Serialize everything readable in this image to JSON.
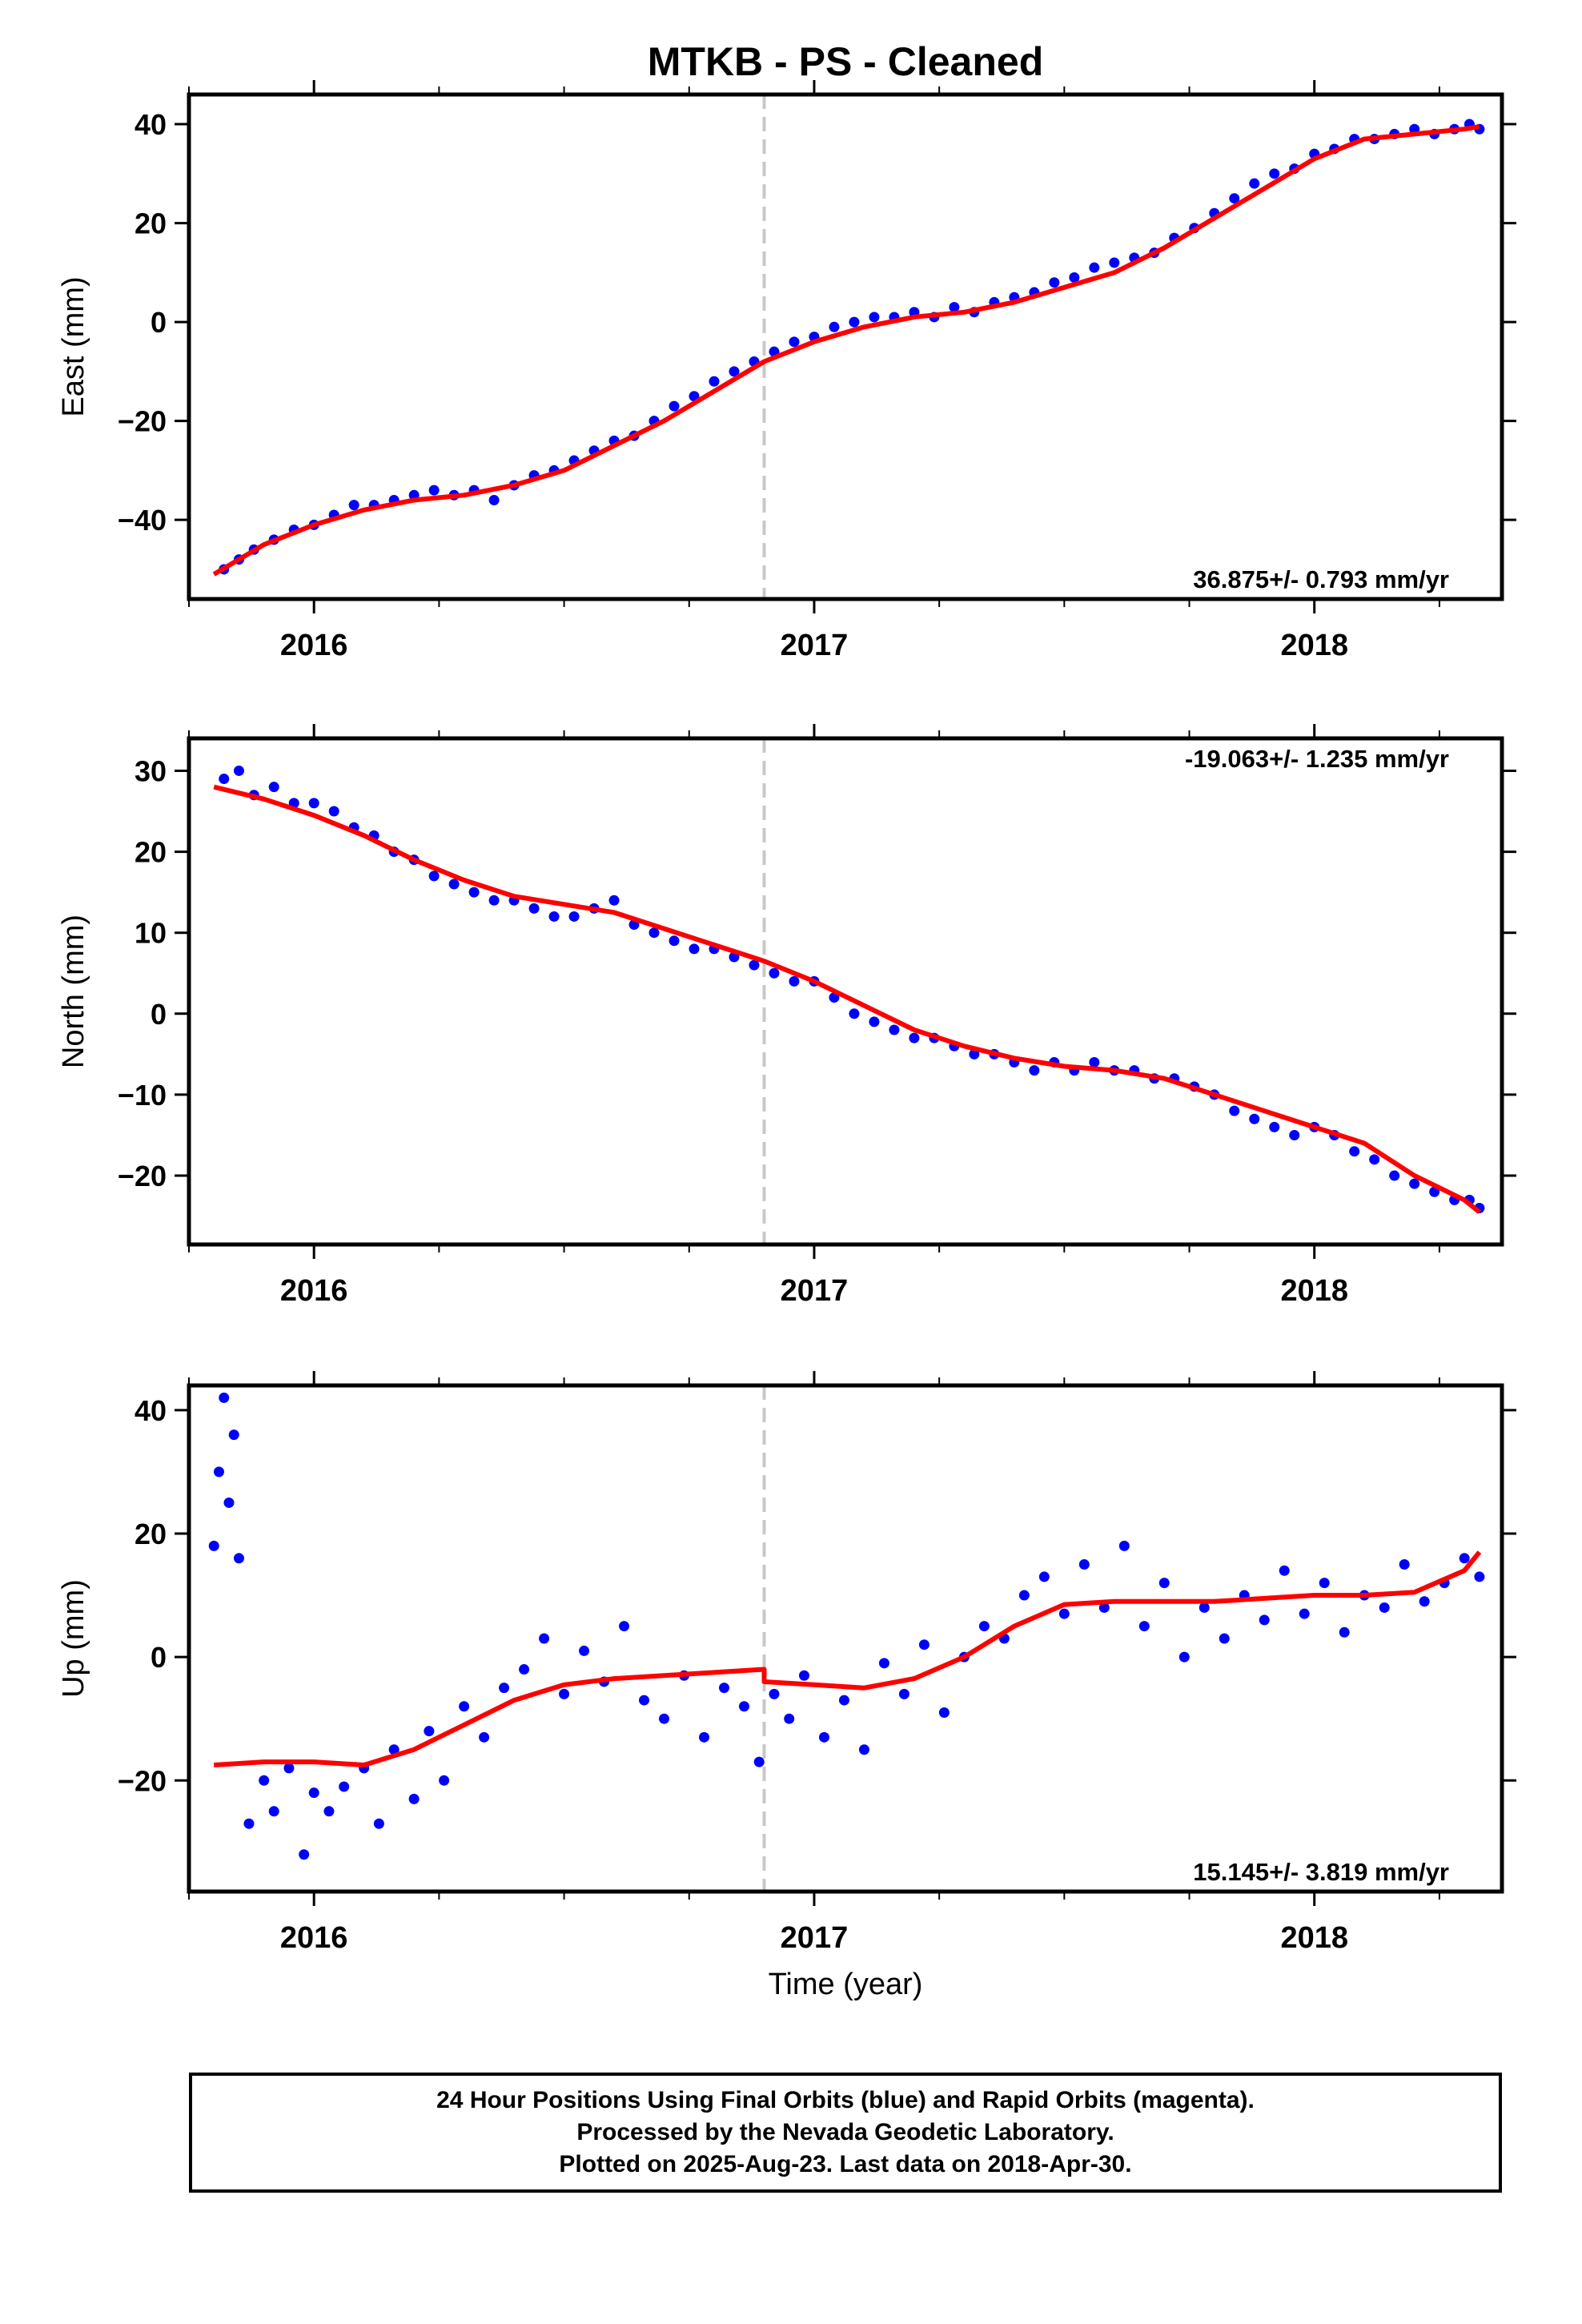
{
  "figure": {
    "title": "MTKB  - PS - Cleaned",
    "xlabel": "Time (year)"
  },
  "footer": {
    "lines": [
      "24 Hour Positions Using Final Orbits (blue) and Rapid Orbits (magenta).",
      "Processed by the Nevada Geodetic Laboratory.",
      "Plotted on 2025-Aug-23. Last data on 2018-Apr-30."
    ]
  },
  "colors": {
    "data_points": "#0000ff",
    "fit_line": "#ff0000",
    "event_line": "#c8c8c8",
    "frame": "#000000"
  },
  "chart_data": [
    {
      "type": "scatter",
      "title": "MTKB  - PS - Cleaned",
      "ylabel": "East (mm)",
      "xlim": [
        2015.75,
        2018.375
      ],
      "ylim": [
        -56,
        46
      ],
      "xticks": [
        2016,
        2017,
        2018
      ],
      "xtick_labels": [
        "2016",
        "2017",
        "2018"
      ],
      "yticks": [
        -40,
        -20,
        0,
        20,
        40
      ],
      "ytick_labels": [
        "−40",
        "−20",
        "0",
        "20",
        "40"
      ],
      "event_line_x": 2016.9,
      "annotation": "36.875+/- 0.793 mm/yr",
      "annotation_position": "bottom-right",
      "series": [
        {
          "kind": "fit_line",
          "x": [
            2015.8,
            2015.9,
            2016.0,
            2016.1,
            2016.2,
            2016.3,
            2016.4,
            2016.5,
            2016.6,
            2016.7,
            2016.8,
            2016.9,
            2017.0,
            2017.1,
            2017.2,
            2017.3,
            2017.4,
            2017.5,
            2017.6,
            2017.7,
            2017.8,
            2017.9,
            2018.0,
            2018.1,
            2018.2,
            2018.3,
            2018.33
          ],
          "y": [
            -51,
            -45,
            -41,
            -38,
            -36,
            -35,
            -33,
            -30,
            -25,
            -20,
            -14,
            -8,
            -4,
            -1,
            1,
            2,
            4,
            7,
            10,
            15,
            21,
            27,
            33,
            37,
            38,
            39,
            39.5
          ]
        },
        {
          "kind": "points",
          "x": [
            2015.82,
            2015.85,
            2015.88,
            2015.92,
            2015.96,
            2016.0,
            2016.04,
            2016.08,
            2016.12,
            2016.16,
            2016.2,
            2016.24,
            2016.28,
            2016.32,
            2016.36,
            2016.4,
            2016.44,
            2016.48,
            2016.52,
            2016.56,
            2016.6,
            2016.64,
            2016.68,
            2016.72,
            2016.76,
            2016.8,
            2016.84,
            2016.88,
            2016.92,
            2016.96,
            2017.0,
            2017.04,
            2017.08,
            2017.12,
            2017.16,
            2017.2,
            2017.24,
            2017.28,
            2017.32,
            2017.36,
            2017.4,
            2017.44,
            2017.48,
            2017.52,
            2017.56,
            2017.6,
            2017.64,
            2017.68,
            2017.72,
            2017.76,
            2017.8,
            2017.84,
            2017.88,
            2017.92,
            2017.96,
            2018.0,
            2018.04,
            2018.08,
            2018.12,
            2018.16,
            2018.2,
            2018.24,
            2018.28,
            2018.31,
            2018.33
          ],
          "y": [
            -50,
            -48,
            -46,
            -44,
            -42,
            -41,
            -39,
            -37,
            -37,
            -36,
            -35,
            -34,
            -35,
            -34,
            -36,
            -33,
            -31,
            -30,
            -28,
            -26,
            -24,
            -23,
            -20,
            -17,
            -15,
            -12,
            -10,
            -8,
            -6,
            -4,
            -3,
            -1,
            0,
            1,
            1,
            2,
            1,
            3,
            2,
            4,
            5,
            6,
            8,
            9,
            11,
            12,
            13,
            14,
            17,
            19,
            22,
            25,
            28,
            30,
            31,
            34,
            35,
            37,
            37,
            38,
            39,
            38,
            39,
            40,
            39
          ]
        }
      ]
    },
    {
      "type": "scatter",
      "ylabel": "North (mm)",
      "xlim": [
        2015.75,
        2018.375
      ],
      "ylim": [
        -28.5,
        34
      ],
      "xticks": [
        2016,
        2017,
        2018
      ],
      "xtick_labels": [
        "2016",
        "2017",
        "2018"
      ],
      "yticks": [
        -20,
        -10,
        0,
        10,
        20,
        30
      ],
      "ytick_labels": [
        "−20",
        "−10",
        "0",
        "10",
        "20",
        "30"
      ],
      "event_line_x": 2016.9,
      "annotation": "-19.063+/- 1.235 mm/yr",
      "annotation_position": "top-right",
      "series": [
        {
          "kind": "fit_line",
          "x": [
            2015.8,
            2015.9,
            2016.0,
            2016.1,
            2016.2,
            2016.3,
            2016.4,
            2016.5,
            2016.6,
            2016.7,
            2016.8,
            2016.9,
            2017.0,
            2017.1,
            2017.2,
            2017.3,
            2017.4,
            2017.5,
            2017.6,
            2017.7,
            2017.8,
            2017.9,
            2018.0,
            2018.1,
            2018.2,
            2018.3,
            2018.33
          ],
          "y": [
            28,
            26.5,
            24.5,
            22,
            19,
            16.5,
            14.5,
            13.5,
            12.5,
            10.5,
            8.5,
            6.5,
            4,
            1,
            -2,
            -4,
            -5.5,
            -6.5,
            -7,
            -8,
            -10,
            -12,
            -14,
            -16,
            -20,
            -23,
            -24.5
          ]
        },
        {
          "kind": "points",
          "x": [
            2015.82,
            2015.85,
            2015.88,
            2015.92,
            2015.96,
            2016.0,
            2016.04,
            2016.08,
            2016.12,
            2016.16,
            2016.2,
            2016.24,
            2016.28,
            2016.32,
            2016.36,
            2016.4,
            2016.44,
            2016.48,
            2016.52,
            2016.56,
            2016.6,
            2016.64,
            2016.68,
            2016.72,
            2016.76,
            2016.8,
            2016.84,
            2016.88,
            2016.92,
            2016.96,
            2017.0,
            2017.04,
            2017.08,
            2017.12,
            2017.16,
            2017.2,
            2017.24,
            2017.28,
            2017.32,
            2017.36,
            2017.4,
            2017.44,
            2017.48,
            2017.52,
            2017.56,
            2017.6,
            2017.64,
            2017.68,
            2017.72,
            2017.76,
            2017.8,
            2017.84,
            2017.88,
            2017.92,
            2017.96,
            2018.0,
            2018.04,
            2018.08,
            2018.12,
            2018.16,
            2018.2,
            2018.24,
            2018.28,
            2018.31,
            2018.33
          ],
          "y": [
            29,
            30,
            27,
            28,
            26,
            26,
            25,
            23,
            22,
            20,
            19,
            17,
            16,
            15,
            14,
            14,
            13,
            12,
            12,
            13,
            14,
            11,
            10,
            9,
            8,
            8,
            7,
            6,
            5,
            4,
            4,
            2,
            0,
            -1,
            -2,
            -3,
            -3,
            -4,
            -5,
            -5,
            -6,
            -7,
            -6,
            -7,
            -6,
            -7,
            -7,
            -8,
            -8,
            -9,
            -10,
            -12,
            -13,
            -14,
            -15,
            -14,
            -15,
            -17,
            -18,
            -20,
            -21,
            -22,
            -23,
            -23,
            -24
          ]
        }
      ]
    },
    {
      "type": "scatter",
      "ylabel": "Up (mm)",
      "xlabel": "Time (year)",
      "xlim": [
        2015.75,
        2018.375
      ],
      "ylim": [
        -38,
        44
      ],
      "xticks": [
        2016,
        2017,
        2018
      ],
      "xtick_labels": [
        "2016",
        "2017",
        "2018"
      ],
      "yticks": [
        -20,
        0,
        20,
        40
      ],
      "ytick_labels": [
        "−20",
        "0",
        "20",
        "40"
      ],
      "event_line_x": 2016.9,
      "annotation": "15.145+/- 3.819 mm/yr",
      "annotation_position": "bottom-right",
      "series": [
        {
          "kind": "fit_line",
          "x": [
            2015.8,
            2015.9,
            2016.0,
            2016.1,
            2016.2,
            2016.3,
            2016.4,
            2016.5,
            2016.6,
            2016.7,
            2016.8,
            2016.9,
            2016.9,
            2017.0,
            2017.1,
            2017.2,
            2017.3,
            2017.4,
            2017.5,
            2017.6,
            2017.7,
            2017.8,
            2017.9,
            2018.0,
            2018.1,
            2018.2,
            2018.3,
            2018.33
          ],
          "y": [
            -17.5,
            -17,
            -17,
            -17.5,
            -15,
            -11,
            -7,
            -4.5,
            -3.5,
            -3,
            -2.5,
            -2,
            -4,
            -4.5,
            -5,
            -3.5,
            0,
            5,
            8.5,
            9,
            9,
            9,
            9.5,
            10,
            10,
            10.5,
            14,
            17
          ]
        },
        {
          "kind": "points",
          "x": [
            2015.8,
            2015.81,
            2015.82,
            2015.83,
            2015.84,
            2015.85,
            2015.87,
            2015.9,
            2015.92,
            2015.95,
            2015.98,
            2016.0,
            2016.03,
            2016.06,
            2016.1,
            2016.13,
            2016.16,
            2016.2,
            2016.23,
            2016.26,
            2016.3,
            2016.34,
            2016.38,
            2016.42,
            2016.46,
            2016.5,
            2016.54,
            2016.58,
            2016.62,
            2016.66,
            2016.7,
            2016.74,
            2016.78,
            2016.82,
            2016.86,
            2016.89,
            2016.92,
            2016.95,
            2016.98,
            2017.02,
            2017.06,
            2017.1,
            2017.14,
            2017.18,
            2017.22,
            2017.26,
            2017.3,
            2017.34,
            2017.38,
            2017.42,
            2017.46,
            2017.5,
            2017.54,
            2017.58,
            2017.62,
            2017.66,
            2017.7,
            2017.74,
            2017.78,
            2017.82,
            2017.86,
            2017.9,
            2017.94,
            2017.98,
            2018.02,
            2018.06,
            2018.1,
            2018.14,
            2018.18,
            2018.22,
            2018.26,
            2018.3,
            2018.33
          ],
          "y": [
            18,
            30,
            42,
            25,
            36,
            16,
            -27,
            -20,
            -25,
            -18,
            -32,
            -22,
            -25,
            -21,
            -18,
            -27,
            -15,
            -23,
            -12,
            -20,
            -8,
            -13,
            -5,
            -2,
            3,
            -6,
            1,
            -4,
            5,
            -7,
            -10,
            -3,
            -13,
            -5,
            -8,
            -17,
            -6,
            -10,
            -3,
            -13,
            -7,
            -15,
            -1,
            -6,
            2,
            -9,
            0,
            5,
            3,
            10,
            13,
            7,
            15,
            8,
            18,
            5,
            12,
            0,
            8,
            3,
            10,
            6,
            14,
            7,
            12,
            4,
            10,
            8,
            15,
            9,
            12,
            16,
            13
          ]
        }
      ]
    }
  ]
}
